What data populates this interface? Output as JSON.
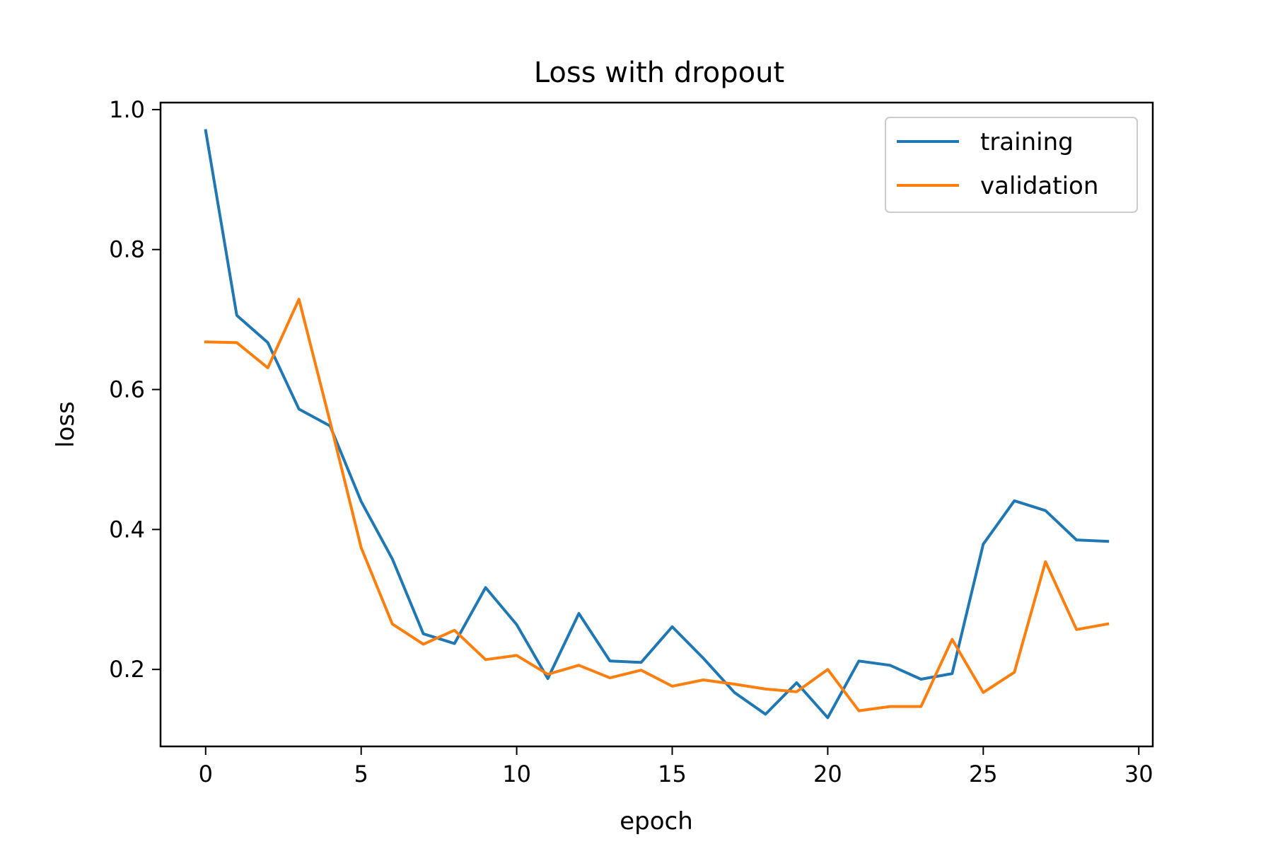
{
  "chart_data": {
    "type": "line",
    "title": "Loss with dropout",
    "xlabel": "epoch",
    "ylabel": "loss",
    "xlim": [
      -1.45,
      30.45
    ],
    "ylim": [
      0.09,
      1.01
    ],
    "xticks": [
      0,
      5,
      10,
      15,
      20,
      25,
      30
    ],
    "yticks": [
      0.2,
      0.4,
      0.6,
      0.8,
      1.0
    ],
    "ytick_labels": [
      "0.2",
      "0.4",
      "0.6",
      "0.8",
      "1.0"
    ],
    "grid": false,
    "legend_position": "top-right",
    "x": [
      0,
      1,
      2,
      3,
      4,
      5,
      6,
      7,
      8,
      9,
      10,
      11,
      12,
      13,
      14,
      15,
      16,
      17,
      18,
      19,
      20,
      21,
      22,
      23,
      24,
      25,
      26,
      27,
      28,
      29
    ],
    "series": [
      {
        "name": "training",
        "color": "#1f77b4",
        "values": [
          0.97,
          0.706,
          0.667,
          0.572,
          0.548,
          0.44,
          0.358,
          0.251,
          0.237,
          0.317,
          0.264,
          0.187,
          0.28,
          0.212,
          0.21,
          0.261,
          0.216,
          0.167,
          0.136,
          0.181,
          0.131,
          0.212,
          0.206,
          0.186,
          0.194,
          0.379,
          0.441,
          0.427,
          0.385,
          0.383
        ]
      },
      {
        "name": "validation",
        "color": "#ff7f0e",
        "values": [
          0.668,
          0.667,
          0.631,
          0.729,
          0.554,
          0.374,
          0.265,
          0.236,
          0.256,
          0.214,
          0.22,
          0.193,
          0.206,
          0.188,
          0.199,
          0.176,
          0.185,
          0.179,
          0.172,
          0.168,
          0.2,
          0.141,
          0.147,
          0.147,
          0.243,
          0.167,
          0.196,
          0.354,
          0.257,
          0.265
        ]
      }
    ]
  }
}
